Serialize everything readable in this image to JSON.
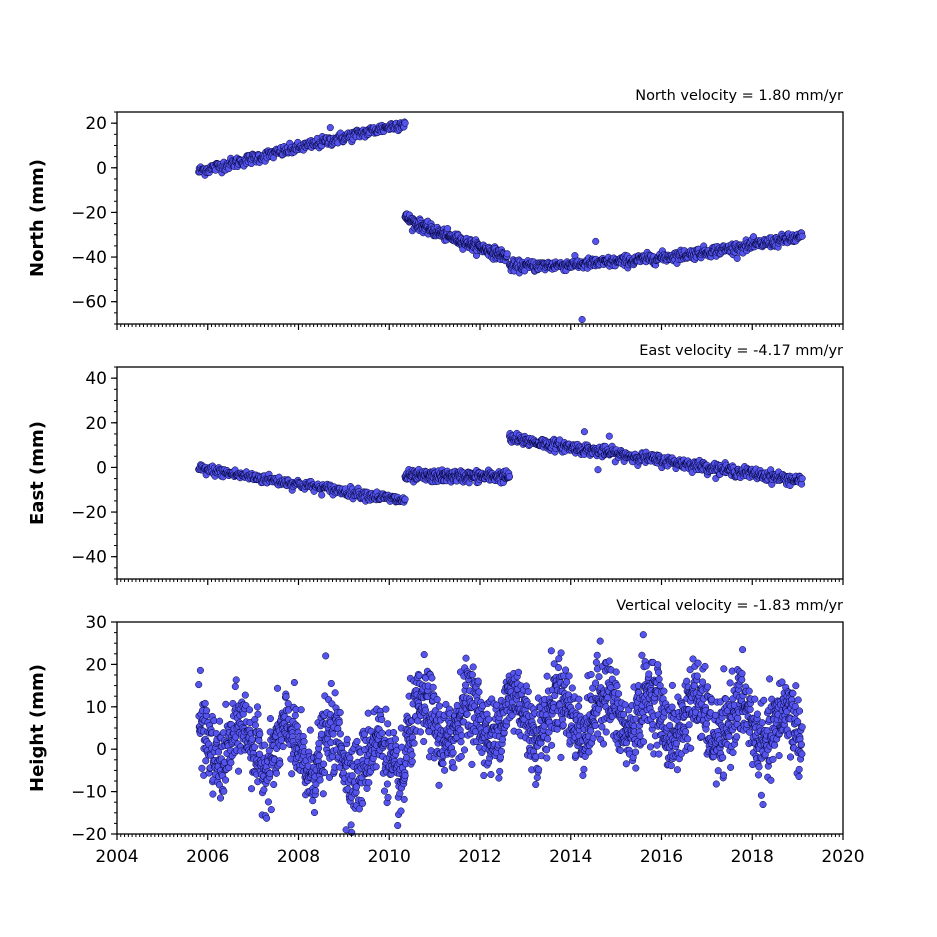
{
  "chart_data": [
    {
      "type": "scatter",
      "title": "North velocity = 1.80 mm/yr",
      "xlabel": "",
      "ylabel": "North (mm)",
      "xlim": [
        2004,
        2020
      ],
      "ylim": [
        -70,
        25
      ],
      "yticks": [
        20,
        0,
        -20,
        -40,
        -60
      ],
      "ytick_labels": [
        "20",
        "0",
        "−20",
        "−40",
        "−60"
      ],
      "x_tick_labels_shown": false,
      "marker_color": "#5555ee",
      "marker_edge": "#000033",
      "segments": [
        {
          "x_start": 2005.8,
          "x_end": 2010.35,
          "y_start": -1.5,
          "y_end": 20,
          "noise": 1.2,
          "n": 330
        },
        {
          "x_start": 2010.35,
          "x_end": 2012.6,
          "y_start": -24,
          "y_end": -40,
          "decay_from": -22,
          "noise": 1.2,
          "n": 280
        },
        {
          "x_start": 2012.65,
          "x_end": 2019.1,
          "y_start": -44,
          "y_end": -31,
          "sag": -44,
          "noise": 1.2,
          "n": 560
        }
      ],
      "outliers": [
        {
          "x": 2014.25,
          "y": -68
        },
        {
          "x": 2014.55,
          "y": -33
        },
        {
          "x": 2008.7,
          "y": 18
        }
      ]
    },
    {
      "type": "scatter",
      "title": "East velocity = -4.17 mm/yr",
      "xlabel": "",
      "ylabel": "East (mm)",
      "xlim": [
        2004,
        2020
      ],
      "ylim": [
        -50,
        45
      ],
      "yticks": [
        40,
        20,
        0,
        -20,
        -40
      ],
      "ytick_labels": [
        "40",
        "20",
        "0",
        "−20",
        "−40"
      ],
      "x_tick_labels_shown": false,
      "marker_color": "#5555ee",
      "marker_edge": "#000033",
      "segments": [
        {
          "x_start": 2005.8,
          "x_end": 2010.35,
          "y_start": -0.5,
          "y_end": -15,
          "noise": 1.1,
          "n": 330
        },
        {
          "x_start": 2010.35,
          "x_end": 2012.65,
          "y_start": -4,
          "y_end": -4,
          "noise": 1.3,
          "n": 260
        },
        {
          "x_start": 2012.65,
          "x_end": 2019.1,
          "y_start": 13,
          "y_end": -6,
          "noise": 1.2,
          "n": 560
        }
      ],
      "outliers": [
        {
          "x": 2014.3,
          "y": 16
        },
        {
          "x": 2014.85,
          "y": 14
        },
        {
          "x": 2014.6,
          "y": -1
        }
      ]
    },
    {
      "type": "scatter",
      "title": "Vertical velocity = -1.83 mm/yr",
      "xlabel": "",
      "ylabel": "Height (mm)",
      "xlim": [
        2004,
        2020
      ],
      "ylim": [
        -20,
        30
      ],
      "yticks": [
        30,
        20,
        10,
        0,
        -10,
        -20
      ],
      "ytick_labels": [
        "30",
        "20",
        "10",
        "0",
        "−10",
        "−20"
      ],
      "xticks": [
        2004,
        2006,
        2008,
        2010,
        2012,
        2014,
        2016,
        2018,
        2020
      ],
      "xtick_labels": [
        "2004",
        "2006",
        "2008",
        "2010",
        "2012",
        "2014",
        "2016",
        "2018",
        "2020"
      ],
      "x_tick_labels_shown": true,
      "marker_color": "#5555ee",
      "marker_edge": "#000033",
      "segments": [
        {
          "x_start": 2005.8,
          "x_end": 2010.35,
          "y_start": 2,
          "y_end": -3,
          "seasonal": 5,
          "noise": 4.5,
          "n": 700
        },
        {
          "x_start": 2010.35,
          "x_end": 2019.1,
          "y_start": 5,
          "y_end": 4,
          "seasonal": 5,
          "noise": 4.5,
          "bump": 4,
          "n": 1500
        }
      ],
      "outliers": [
        {
          "x": 2009.05,
          "y": -19
        },
        {
          "x": 2015.6,
          "y": 27
        },
        {
          "x": 2014.65,
          "y": 25.5
        },
        {
          "x": 2008.6,
          "y": 22
        }
      ]
    }
  ]
}
